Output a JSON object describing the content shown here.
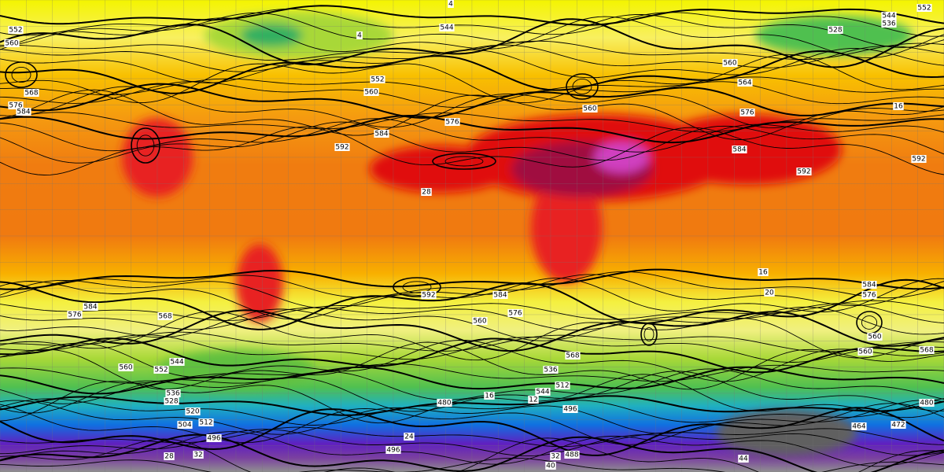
{
  "contour_labels": [
    4,
    552,
    544,
    536,
    544,
    552,
    560,
    528,
    4,
    552,
    560,
    560,
    564,
    560,
    576,
    584,
    592,
    576,
    584,
    592,
    592,
    568,
    576,
    584,
    28,
    584,
    576,
    592,
    584,
    576,
    560,
    584,
    576,
    568,
    560,
    552,
    544,
    536,
    528,
    520,
    512,
    504,
    496,
    480,
    16,
    12,
    544,
    536,
    512,
    568,
    496,
    560,
    568,
    560,
    464,
    472,
    480,
    44,
    488,
    32,
    40,
    28,
    32,
    24,
    496,
    16,
    20,
    16
  ]
}
